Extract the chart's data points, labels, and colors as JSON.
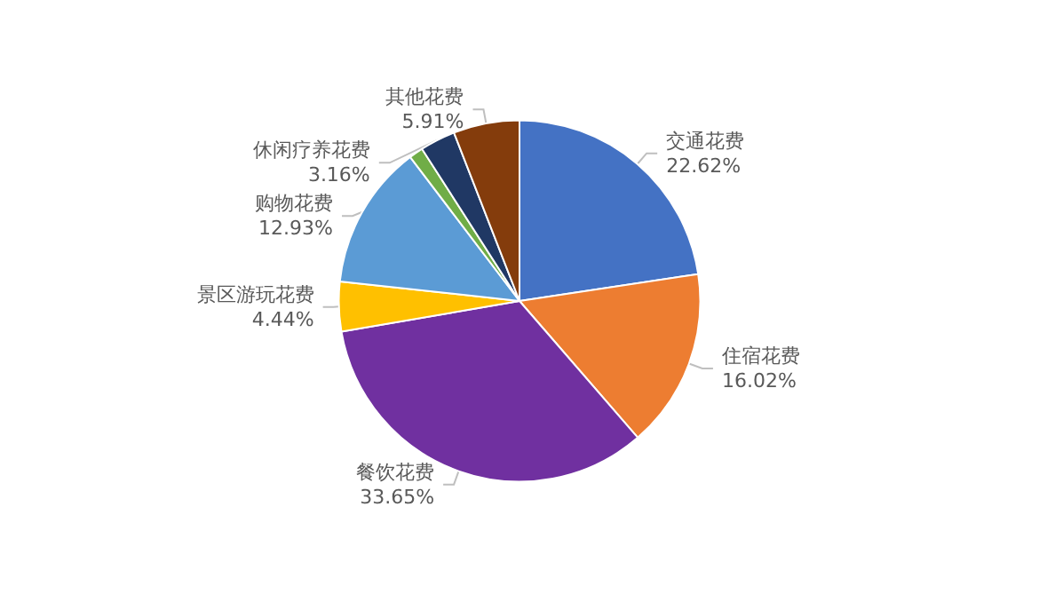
{
  "chart_data": {
    "type": "pie",
    "categories": [
      "交通花费",
      "住宿花费",
      "餐饮花费",
      "景区游玩花费",
      "购物花费",
      null,
      "休闲疗养花费",
      "其他花费"
    ],
    "values": [
      22.62,
      16.02,
      33.65,
      4.44,
      12.93,
      1.27,
      3.16,
      5.91
    ],
    "value_labels": [
      "22.62%",
      "16.02%",
      "33.65%",
      "4.44%",
      "12.93%",
      null,
      "3.16%",
      "5.91%"
    ],
    "colors": [
      "#4472c4",
      "#ed7d31",
      "#7030a0",
      "#ffc000",
      "#5b9bd5",
      "#70ad47",
      "#203864",
      "#843c0c"
    ],
    "legend": false
  }
}
